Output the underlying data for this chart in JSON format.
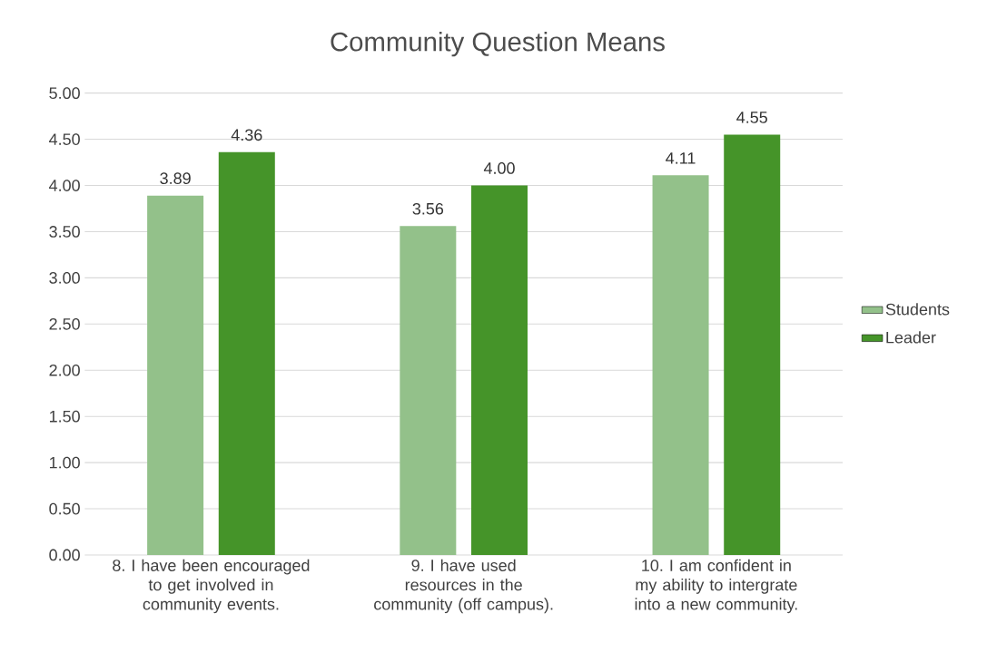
{
  "chart_data": {
    "type": "bar",
    "title": "Community Question Means",
    "categories": [
      "8. I have been encouraged to get involved in community events.",
      "9. I have used resources in the community (off campus).",
      "10. I am confident in my ability to intergrate into a new community."
    ],
    "series": [
      {
        "name": "Students",
        "color": "#93c18a",
        "values": [
          3.89,
          3.56,
          4.11
        ],
        "value_labels": [
          "3.89",
          "3.56",
          "4.11"
        ]
      },
      {
        "name": "Leader",
        "color": "#459429",
        "values": [
          4.36,
          4.0,
          4.55
        ],
        "value_labels": [
          "4.36",
          "4.00",
          "4.55"
        ]
      }
    ],
    "ylim": [
      0,
      5
    ],
    "yticks": [
      {
        "value": 0,
        "label": "0.00"
      },
      {
        "value": 0.5,
        "label": "0.50"
      },
      {
        "value": 1,
        "label": "1.00"
      },
      {
        "value": 1.5,
        "label": "1.50"
      },
      {
        "value": 2,
        "label": "2.00"
      },
      {
        "value": 2.5,
        "label": "2.50"
      },
      {
        "value": 3,
        "label": "3.00"
      },
      {
        "value": 3.5,
        "label": "3.50"
      },
      {
        "value": 4,
        "label": "4.00"
      },
      {
        "value": 4.5,
        "label": "4.50"
      },
      {
        "value": 5,
        "label": "5.00"
      }
    ],
    "grid": "y",
    "legend": "right"
  }
}
